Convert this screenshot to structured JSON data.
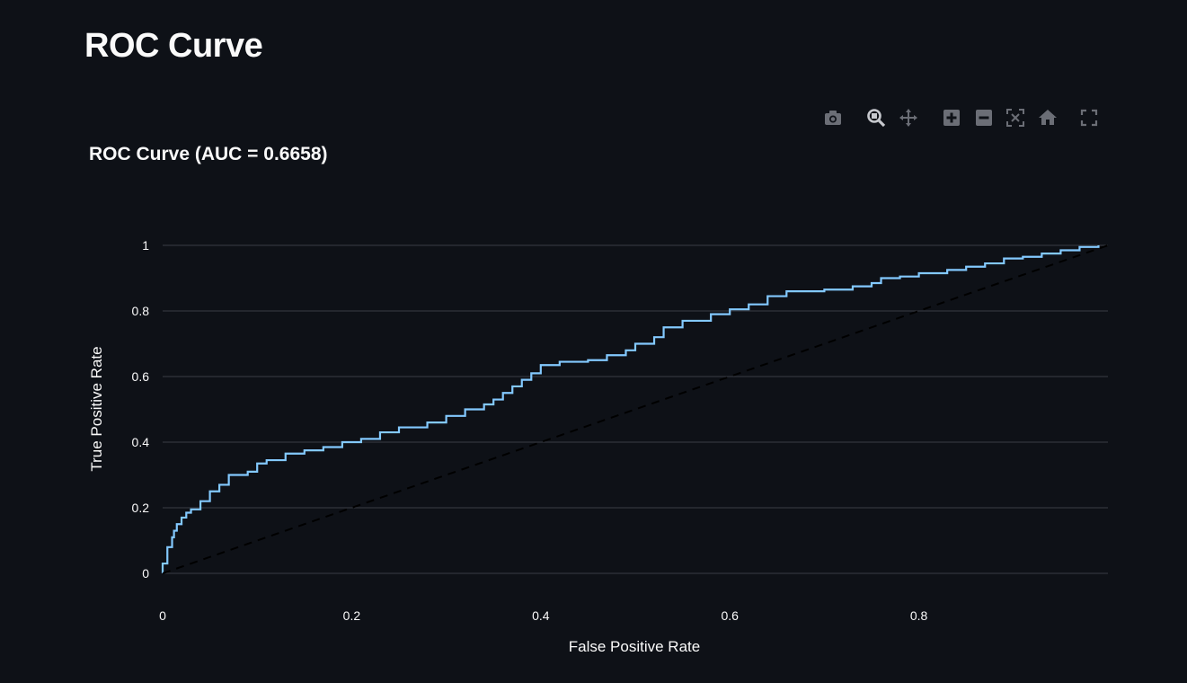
{
  "page": {
    "title": "ROC Curve"
  },
  "modebar": {
    "buttons": [
      {
        "name": "camera-icon"
      },
      {
        "name": "zoom-icon"
      },
      {
        "name": "pan-icon"
      },
      {
        "name": "zoom-in-icon"
      },
      {
        "name": "zoom-out-icon"
      },
      {
        "name": "autoscale-icon"
      },
      {
        "name": "home-icon"
      },
      {
        "name": "fullscreen-icon"
      }
    ]
  },
  "colors": {
    "background": "#0e1117",
    "roc_line": "#83c9ff",
    "diagonal": "#000000",
    "grid": "#3a3d45",
    "modebar_icon": "#6b6e76"
  },
  "chart_data": {
    "type": "line",
    "title": "ROC Curve (AUC = 0.6658)",
    "xlabel": "False Positive Rate",
    "ylabel": "True Positive Rate",
    "xlim": [
      0,
      1
    ],
    "ylim": [
      0,
      1
    ],
    "xticks": [
      0,
      0.2,
      0.4,
      0.6,
      0.8
    ],
    "xtick_labels": [
      "0",
      "0.2",
      "0.4",
      "0.6",
      "0.8"
    ],
    "yticks": [
      0,
      0.2,
      0.4,
      0.6,
      0.8,
      1
    ],
    "ytick_labels": [
      "0",
      "0.2",
      "0.4",
      "0.6",
      "0.8",
      "1"
    ],
    "grid": "horizontal",
    "series": [
      {
        "style": "solid",
        "color": "#83c9ff",
        "x": [
          0,
          0,
          0.005,
          0.005,
          0.01,
          0.012,
          0.015,
          0.02,
          0.025,
          0.03,
          0.04,
          0.05,
          0.06,
          0.07,
          0.09,
          0.1,
          0.11,
          0.13,
          0.15,
          0.17,
          0.19,
          0.21,
          0.23,
          0.25,
          0.28,
          0.3,
          0.32,
          0.34,
          0.35,
          0.36,
          0.37,
          0.38,
          0.39,
          0.4,
          0.42,
          0.45,
          0.47,
          0.49,
          0.5,
          0.52,
          0.53,
          0.55,
          0.58,
          0.6,
          0.62,
          0.64,
          0.66,
          0.7,
          0.73,
          0.75,
          0.76,
          0.78,
          0.8,
          0.83,
          0.85,
          0.87,
          0.89,
          0.91,
          0.93,
          0.95,
          0.97,
          0.99
        ],
        "y": [
          0,
          0.03,
          0.05,
          0.08,
          0.11,
          0.13,
          0.15,
          0.17,
          0.185,
          0.195,
          0.22,
          0.25,
          0.27,
          0.3,
          0.31,
          0.335,
          0.345,
          0.365,
          0.375,
          0.385,
          0.4,
          0.41,
          0.43,
          0.445,
          0.46,
          0.48,
          0.5,
          0.515,
          0.53,
          0.55,
          0.57,
          0.59,
          0.61,
          0.635,
          0.645,
          0.65,
          0.665,
          0.68,
          0.7,
          0.72,
          0.75,
          0.77,
          0.79,
          0.805,
          0.82,
          0.845,
          0.86,
          0.865,
          0.875,
          0.885,
          0.9,
          0.905,
          0.915,
          0.925,
          0.935,
          0.945,
          0.96,
          0.965,
          0.975,
          0.985,
          0.995,
          1.0
        ]
      },
      {
        "style": "dashed",
        "color": "#000000",
        "x": [
          0,
          1
        ],
        "y": [
          0,
          1
        ]
      }
    ]
  }
}
